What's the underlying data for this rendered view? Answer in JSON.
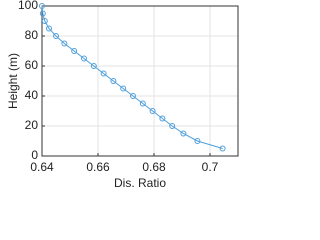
{
  "chart_data": {
    "type": "line",
    "xlabel": "Dis. Ratio",
    "ylabel": "Height (m)",
    "x": [
      0.7045,
      0.6955,
      0.6905,
      0.6865,
      0.683,
      0.6795,
      0.676,
      0.6725,
      0.669,
      0.6655,
      0.662,
      0.6585,
      0.655,
      0.6515,
      0.648,
      0.645,
      0.6425,
      0.641,
      0.6403,
      0.64
    ],
    "series": [
      {
        "color": "#4f9fdc",
        "values": [
          5,
          10,
          15,
          20,
          25,
          30,
          35,
          40,
          45,
          50,
          55,
          60,
          65,
          70,
          75,
          80,
          85,
          90,
          95,
          100
        ]
      }
    ],
    "xlim": [
      0.64,
      0.71
    ],
    "xticks": [
      0.64,
      0.66,
      0.68,
      0.7
    ],
    "ylim": [
      0,
      100
    ],
    "yticks": [
      0,
      20,
      40,
      60,
      80,
      100
    ],
    "grid": true
  }
}
